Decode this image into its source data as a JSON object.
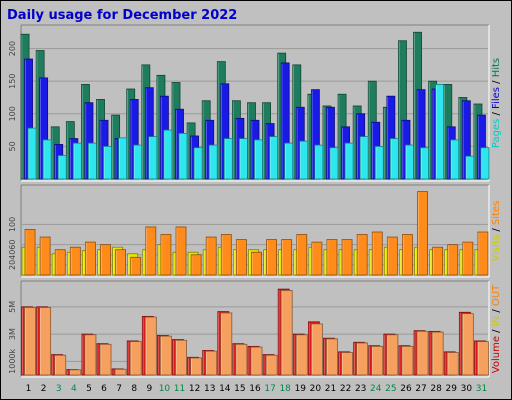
{
  "chart_data": {
    "type": "bar",
    "title": "Daily usage for December 2022",
    "categories": [
      "1",
      "2",
      "3",
      "4",
      "5",
      "6",
      "7",
      "8",
      "9",
      "10",
      "11",
      "12",
      "13",
      "14",
      "15",
      "16",
      "17",
      "18",
      "19",
      "20",
      "21",
      "22",
      "23",
      "24",
      "25",
      "26",
      "27",
      "28",
      "29",
      "30",
      "31"
    ],
    "weekend_days": [
      "3",
      "4",
      "10",
      "11",
      "17",
      "18",
      "24",
      "25",
      "31"
    ],
    "panels": [
      {
        "name": "hits_files_pages",
        "ylim": [
          0,
          230
        ],
        "yticks": [
          "50",
          "100",
          "150",
          "200"
        ],
        "right_label_parts": [
          {
            "text": "Pages",
            "color": "#00cccc"
          },
          {
            "text": " / ",
            "color": "#000000"
          },
          {
            "text": "Files",
            "color": "#0000cc"
          },
          {
            "text": " / ",
            "color": "#000000"
          },
          {
            "text": "Hits",
            "color": "#007755"
          }
        ],
        "series": [
          {
            "name": "Hits",
            "color": "#1f7d5f",
            "values": [
              222,
              197,
              80,
              88,
              145,
              122,
              98,
              138,
              175,
              159,
              148,
              86,
              120,
              180,
              120,
              117,
              117,
              193,
              175,
              130,
              112,
              130,
              112,
              150,
              110,
              212,
              225,
              150,
              145,
              125,
              115
            ]
          },
          {
            "name": "Files",
            "color": "#1a1ae6",
            "values": [
              184,
              155,
              53,
              62,
              117,
              90,
              62,
              122,
              140,
              127,
              107,
              66,
              90,
              146,
              93,
              90,
              85,
              178,
              110,
              137,
              110,
              80,
              100,
              87,
              127,
              90,
              137,
              138,
              80,
              120,
              98
            ]
          },
          {
            "name": "Pages",
            "color": "#2ee6ee",
            "values": [
              78,
              60,
              36,
              55,
              55,
              50,
              63,
              52,
              65,
              75,
              70,
              48,
              52,
              62,
              62,
              60,
              65,
              55,
              58,
              52,
              48,
              55,
              65,
              50,
              62,
              52,
              48,
              145,
              60,
              35,
              48
            ]
          }
        ]
      },
      {
        "name": "visits_sites",
        "ylim": [
          0,
          170
        ],
        "yticks": [
          "20",
          "40",
          "60",
          "100"
        ],
        "right_label_parts": [
          {
            "text": "Visits",
            "color": "#cccc00"
          },
          {
            "text": " / ",
            "color": "#000000"
          },
          {
            "text": "Sites",
            "color": "#ff8000"
          }
        ],
        "series": [
          {
            "name": "Visits",
            "color": "#e6e600",
            "values": [
              55,
              55,
              42,
              45,
              48,
              50,
              55,
              42,
              50,
              60,
              45,
              45,
              50,
              55,
              50,
              50,
              50,
              50,
              50,
              55,
              50,
              50,
              50,
              50,
              55,
              50,
              55,
              50,
              50,
              50,
              50
            ]
          },
          {
            "name": "Sites",
            "color": "#ff8c1a",
            "values": [
              90,
              75,
              50,
              55,
              65,
              60,
              50,
              35,
              95,
              80,
              95,
              40,
              75,
              80,
              70,
              45,
              70,
              70,
              80,
              65,
              70,
              70,
              80,
              85,
              75,
              80,
              165,
              55,
              60,
              65,
              85
            ]
          }
        ]
      },
      {
        "name": "volume_in_out",
        "ylim": [
          0,
          6600000
        ],
        "yticks": [
          "1000k",
          "3M",
          "5M"
        ],
        "right_label_parts": [
          {
            "text": "Volume",
            "color": "#cc0000"
          },
          {
            "text": " / ",
            "color": "#000000"
          },
          {
            "text": "IN",
            "color": "#cccc00"
          },
          {
            "text": " / ",
            "color": "#000000"
          },
          {
            "text": "OUT",
            "color": "#ff8000"
          }
        ],
        "series": [
          {
            "name": "Volume",
            "color": "#dd1a1a",
            "values": [
              5000000,
              5000000,
              1500000,
              400000,
              3000000,
              2300000,
              450000,
              2500000,
              4300000,
              2900000,
              2600000,
              1300000,
              1800000,
              4650000,
              2300000,
              2100000,
              1500000,
              6300000,
              3000000,
              3900000,
              2700000,
              1700000,
              2400000,
              2150000,
              3000000,
              2150000,
              3250000,
              3200000,
              1700000,
              4600000,
              2500000
            ]
          },
          {
            "name": "OUT",
            "color": "#f5a05f",
            "values": [
              4950000,
              4950000,
              1450000,
              380000,
              2950000,
              2250000,
              420000,
              2450000,
              4250000,
              2850000,
              2550000,
              1250000,
              1750000,
              4550000,
              2250000,
              2050000,
              1450000,
              6200000,
              2950000,
              3750000,
              2650000,
              1650000,
              2350000,
              2100000,
              2950000,
              2100000,
              3200000,
              3150000,
              1650000,
              4500000,
              2450000
            ]
          }
        ]
      }
    ]
  }
}
